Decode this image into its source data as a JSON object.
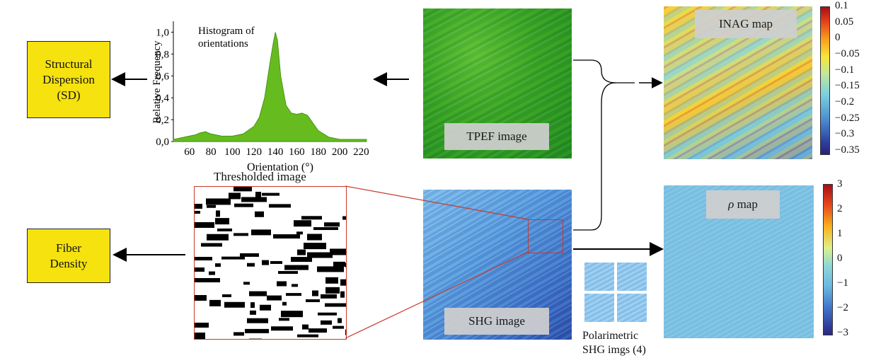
{
  "boxes": {
    "structural_dispersion": "Structural\nDispersion\n(SD)",
    "fiber_density": "Fiber\nDensity"
  },
  "histogram": {
    "title_line1": "Histogram of",
    "title_line2": "orientations",
    "ylabel": "Relative Frequency",
    "xlabel": "Orientation (°)",
    "yticks": [
      "0,0",
      "0,2",
      "0,4",
      "0,6",
      "0,8",
      "1,0"
    ],
    "xticks": [
      "60",
      "80",
      "100",
      "120",
      "140",
      "160",
      "180",
      "200",
      "220"
    ]
  },
  "chart_data": {
    "type": "area",
    "xlabel": "Orientation (°)",
    "ylabel": "Relative Frequency",
    "xlim": [
      45,
      225
    ],
    "ylim": [
      0,
      1.1
    ],
    "x": [
      45,
      55,
      65,
      70,
      75,
      80,
      90,
      100,
      110,
      120,
      125,
      130,
      135,
      138,
      140,
      142,
      145,
      150,
      155,
      160,
      165,
      170,
      175,
      180,
      190,
      200,
      210,
      225
    ],
    "y": [
      0.02,
      0.04,
      0.06,
      0.08,
      0.09,
      0.07,
      0.05,
      0.05,
      0.07,
      0.14,
      0.22,
      0.4,
      0.72,
      0.9,
      1.0,
      0.93,
      0.6,
      0.33,
      0.26,
      0.25,
      0.26,
      0.24,
      0.17,
      0.1,
      0.04,
      0.02,
      0.02,
      0.02
    ]
  },
  "images": {
    "tpef": "TPEF image",
    "shg": "SHG image",
    "inag": "INAG map",
    "rho_symbol": "ρ",
    "rho_suffix": " map",
    "thresholded": "Thresholded image",
    "polarimetric_line1": "Polarimetric",
    "polarimetric_line2": "SHG imgs (4)"
  },
  "colorbars": {
    "inag": [
      "0.1",
      "0.05",
      "0",
      "−0.05",
      "−0.1",
      "−0.15",
      "−0.2",
      "−0.25",
      "−0.3",
      "−0.35"
    ],
    "rho": [
      "3",
      "2",
      "1",
      "0",
      "−1",
      "−2",
      "−3"
    ]
  }
}
